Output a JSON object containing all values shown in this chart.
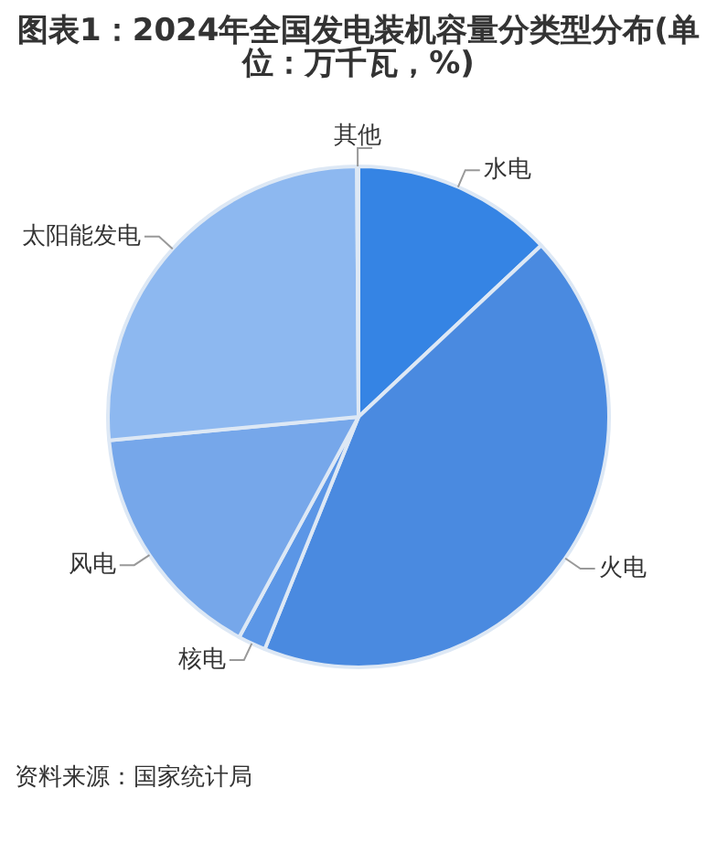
{
  "chart_data": {
    "type": "pie",
    "title": "图表1：2024年全国发电装机容量分类型分布(单位：万千瓦，%)",
    "categories": [
      "水电",
      "火电",
      "核电",
      "风电",
      "太阳能发电",
      "其他"
    ],
    "values": [
      13.0,
      43.1,
      1.8,
      15.6,
      26.4,
      0.1
    ],
    "colors": [
      "#3584e4",
      "#4a8ae0",
      "#5b96e6",
      "#76a7ea",
      "#8db8f0",
      "#a8c8f2"
    ],
    "legend": false,
    "annotations": [
      "资料来源：国家统计局"
    ]
  }
}
